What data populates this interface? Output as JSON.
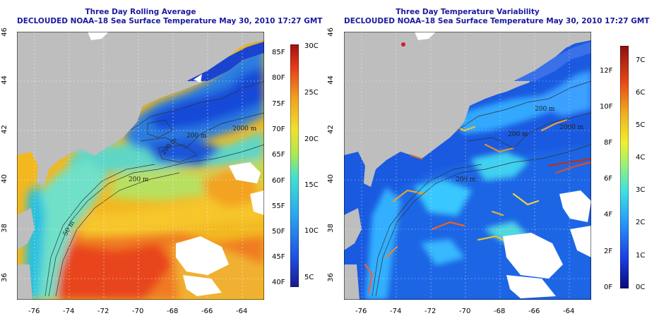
{
  "colors": {
    "land": "#bebebe",
    "title_text": "#1a1aa0",
    "contour": "#333333"
  },
  "left_panel": {
    "title_line1": "Three Day Rolling Average",
    "title_line2": "DECLOUDED NOAA–18 Sea Surface Temperature May 30, 2010 17:27 GMT",
    "colorbar_F": [
      "40F",
      "45F",
      "50F",
      "55F",
      "60F",
      "65F",
      "70F",
      "75F",
      "80F",
      "85F"
    ],
    "colorbar_C": [
      "5C",
      "10C",
      "15C",
      "20C",
      "25C",
      "30C"
    ],
    "contour_labels": [
      "200 m",
      "50 m",
      "200 m",
      "2000 m",
      "200 m"
    ]
  },
  "right_panel": {
    "title_line1": "Three Day Temperature Variability",
    "title_line2": "DECLOUDED NOAA–18 Sea Surface Temperature May 30, 2010 17:27 GMT",
    "colorbar_F": [
      "0F",
      "2F",
      "4F",
      "6F",
      "8F",
      "10F",
      "12F"
    ],
    "colorbar_C": [
      "0C",
      "1C",
      "2C",
      "3C",
      "4C",
      "5C",
      "6C",
      "7C"
    ],
    "contour_labels": [
      "200 m",
      "200 m",
      "2000 m",
      "200 m"
    ]
  },
  "axes": {
    "lat_ticks": [
      "36",
      "38",
      "40",
      "42",
      "44",
      "46"
    ],
    "lon_ticks": [
      "-76",
      "-74",
      "-72",
      "-70",
      "-68",
      "-66",
      "-64"
    ]
  }
}
